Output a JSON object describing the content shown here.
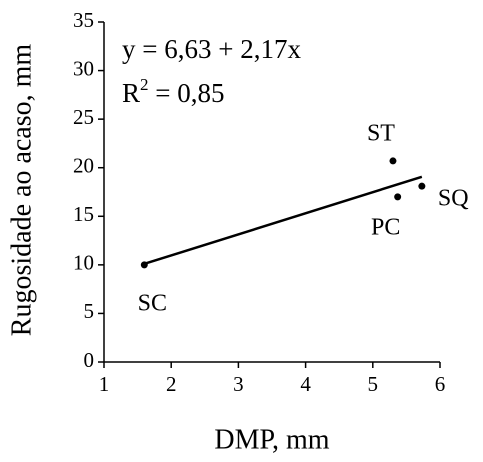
{
  "chart_data": {
    "type": "scatter",
    "xlabel": "DMP, mm",
    "ylabel": "Rugosidade ao acaso, mm",
    "labels": [
      "SC",
      "ST",
      "PC",
      "SQ"
    ],
    "x": [
      1.6,
      5.3,
      5.37,
      5.73
    ],
    "values": [
      10,
      20.7,
      17,
      18.1
    ],
    "color": "#000000",
    "trendline": {
      "intercept": 6.63,
      "slope": 2.17
    },
    "equation": "y = 6,63 + 2,17x",
    "r2": {
      "base": "R",
      "sup": "2",
      "text": " = 0,85"
    },
    "xlim": [
      1,
      6
    ],
    "xticks": [
      1,
      2,
      3,
      4,
      5,
      6
    ],
    "ylim": [
      0,
      35
    ],
    "yticks": [
      0,
      5,
      10,
      15,
      20,
      25,
      30,
      35
    ]
  }
}
